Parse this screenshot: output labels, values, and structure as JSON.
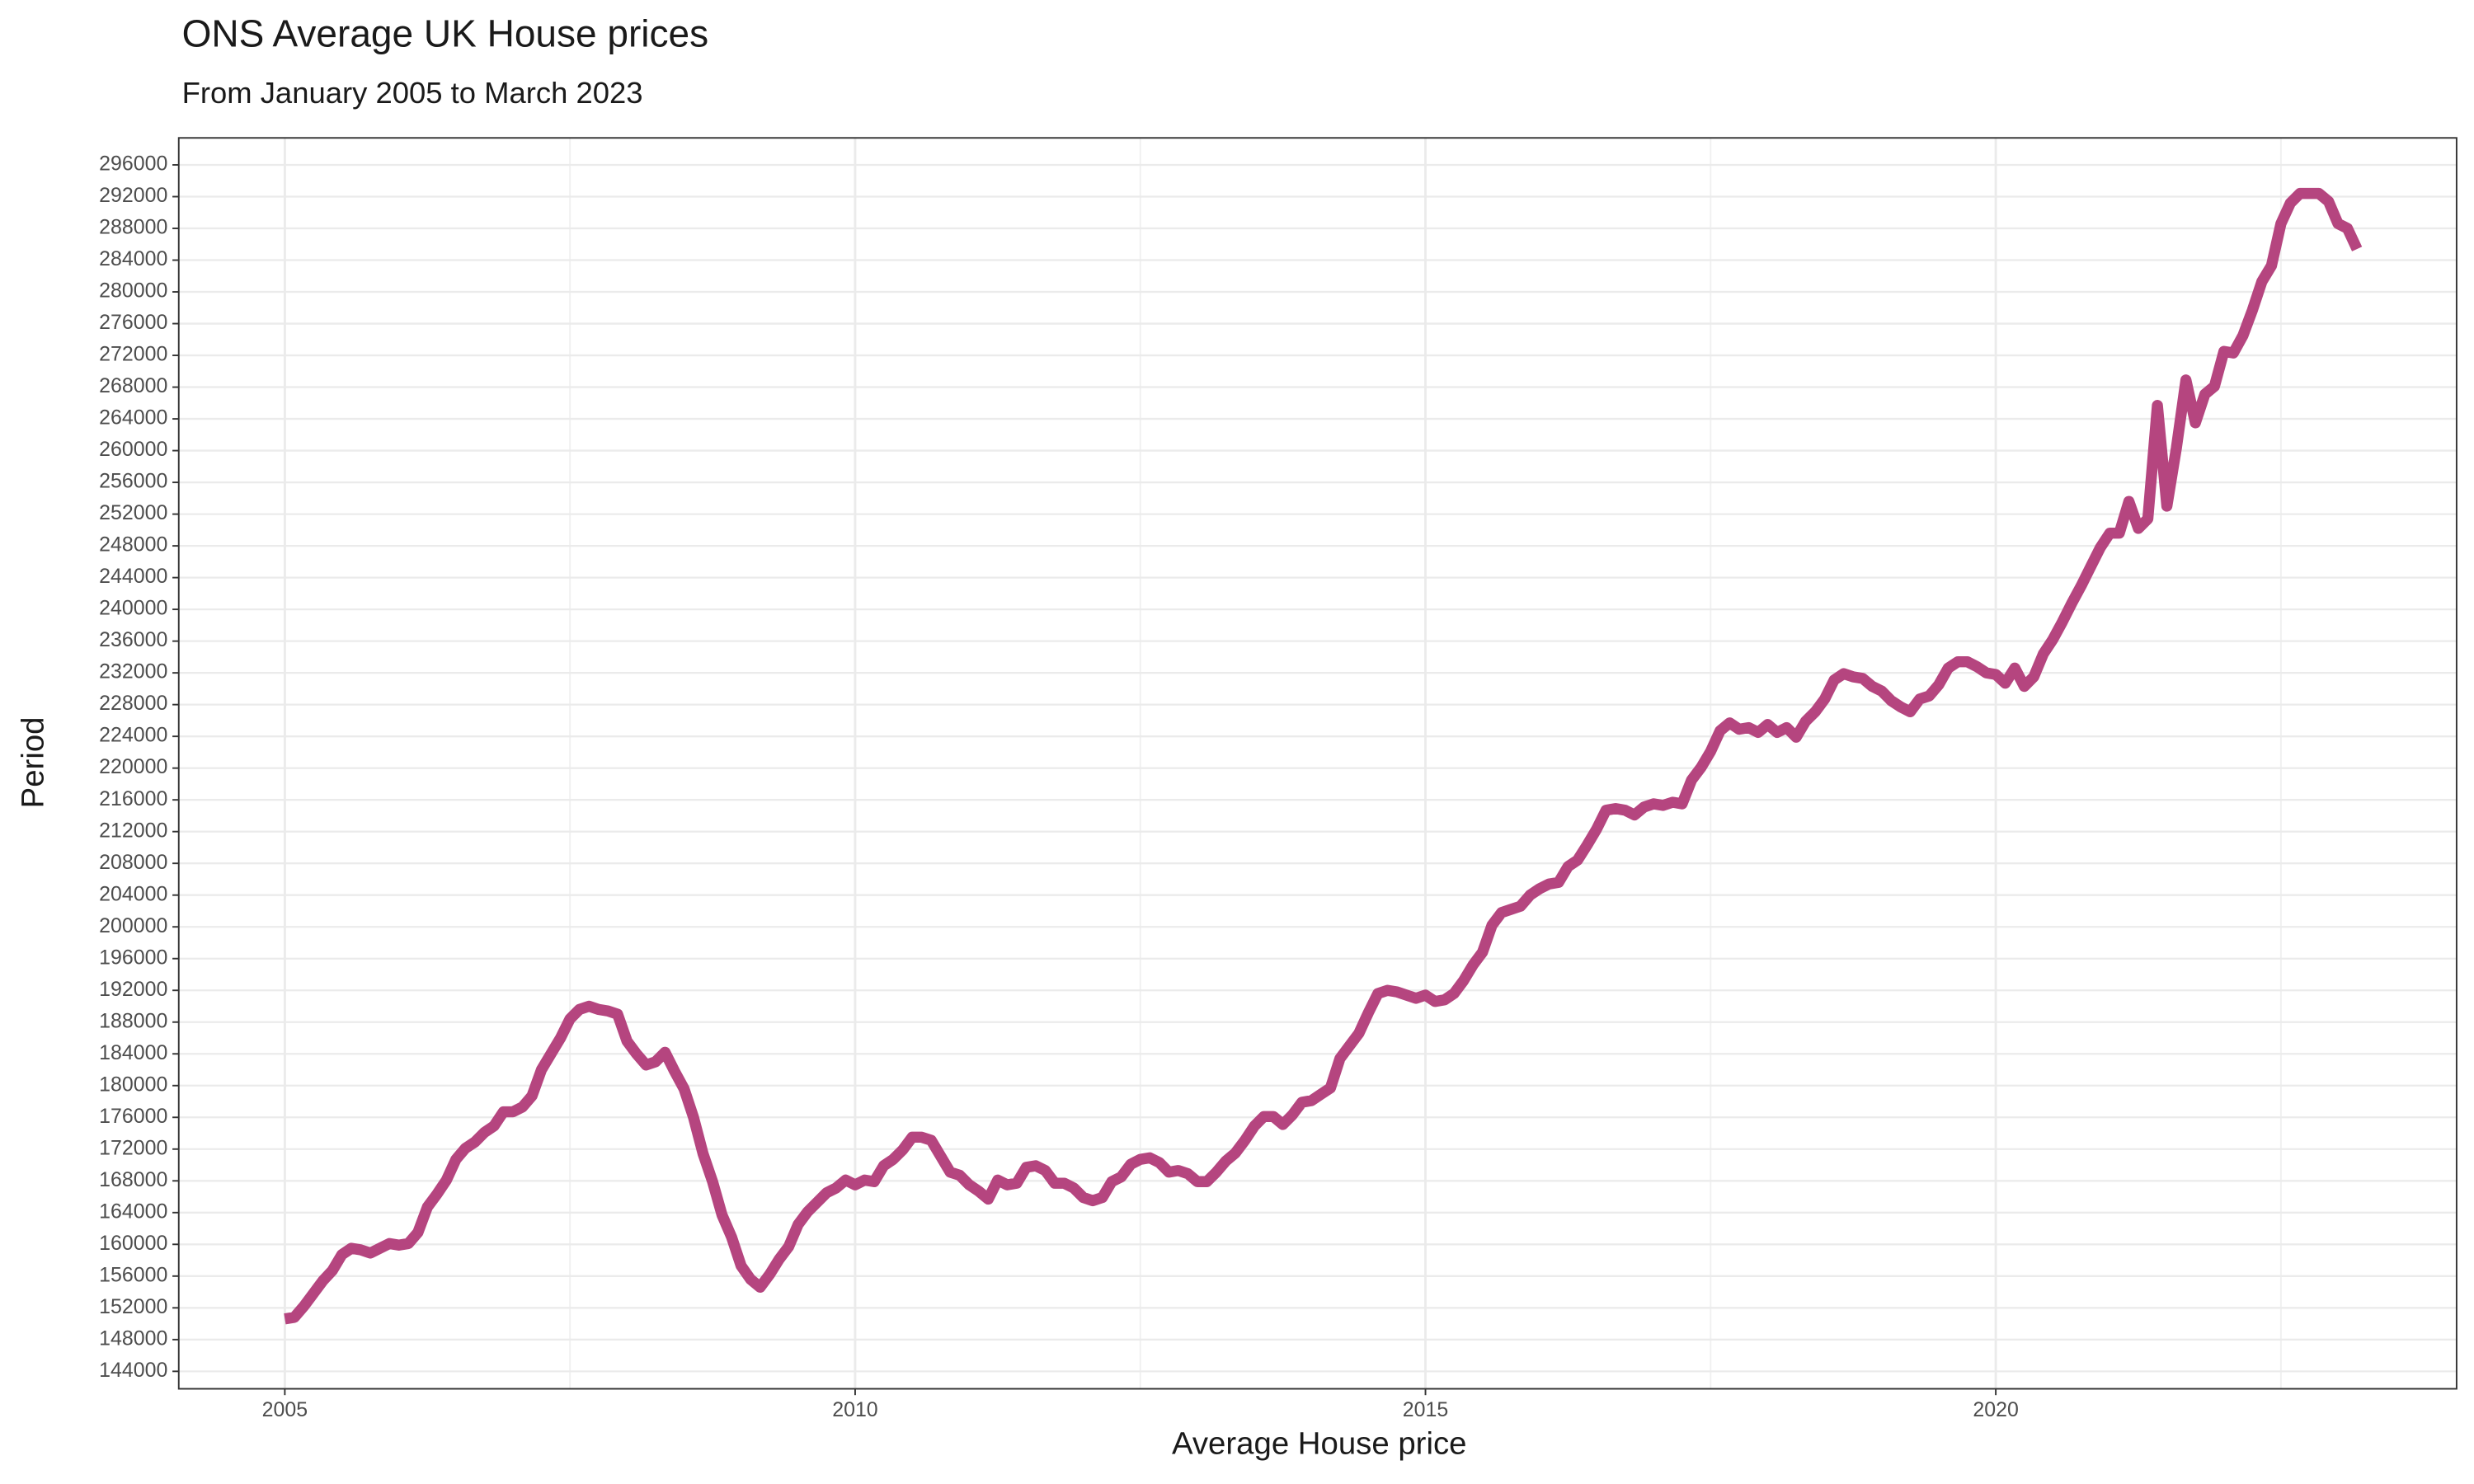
{
  "chart_data": {
    "type": "line",
    "title": "ONS Average UK House prices",
    "subtitle": "From January 2005 to March 2023",
    "x_label": "Average House price",
    "y_label": "Period",
    "grid": true,
    "xlim": [
      2004.07,
      2024.04
    ],
    "xticks": [
      2005,
      2010,
      2015,
      2020
    ],
    "x_minor_grid": [
      2007.5,
      2012.5,
      2017.5,
      2022.5
    ],
    "ylim": [
      141800,
      299400
    ],
    "yticks": [
      144000,
      148000,
      152000,
      156000,
      160000,
      164000,
      168000,
      172000,
      176000,
      180000,
      184000,
      188000,
      192000,
      196000,
      200000,
      204000,
      208000,
      212000,
      216000,
      220000,
      224000,
      228000,
      232000,
      236000,
      240000,
      244000,
      248000,
      252000,
      256000,
      260000,
      264000,
      268000,
      272000,
      276000,
      280000,
      284000,
      288000,
      292000,
      296000
    ],
    "x": [
      2005,
      2005.083,
      2005.167,
      2005.25,
      2005.333,
      2005.417,
      2005.5,
      2005.583,
      2005.667,
      2005.75,
      2005.833,
      2005.917,
      2006,
      2006.083,
      2006.167,
      2006.25,
      2006.333,
      2006.417,
      2006.5,
      2006.583,
      2006.667,
      2006.75,
      2006.833,
      2006.917,
      2007,
      2007.083,
      2007.167,
      2007.25,
      2007.333,
      2007.417,
      2007.5,
      2007.583,
      2007.667,
      2007.75,
      2007.833,
      2007.917,
      2008,
      2008.083,
      2008.167,
      2008.25,
      2008.333,
      2008.417,
      2008.5,
      2008.583,
      2008.667,
      2008.75,
      2008.833,
      2008.917,
      2009,
      2009.083,
      2009.167,
      2009.25,
      2009.333,
      2009.417,
      2009.5,
      2009.583,
      2009.667,
      2009.75,
      2009.833,
      2009.917,
      2010,
      2010.083,
      2010.167,
      2010.25,
      2010.333,
      2010.417,
      2010.5,
      2010.583,
      2010.667,
      2010.75,
      2010.833,
      2010.917,
      2011,
      2011.083,
      2011.167,
      2011.25,
      2011.333,
      2011.417,
      2011.5,
      2011.583,
      2011.667,
      2011.75,
      2011.833,
      2011.917,
      2012,
      2012.083,
      2012.167,
      2012.25,
      2012.333,
      2012.417,
      2012.5,
      2012.583,
      2012.667,
      2012.75,
      2012.833,
      2012.917,
      2013,
      2013.083,
      2013.167,
      2013.25,
      2013.333,
      2013.417,
      2013.5,
      2013.583,
      2013.667,
      2013.75,
      2013.833,
      2013.917,
      2014,
      2014.083,
      2014.167,
      2014.25,
      2014.333,
      2014.417,
      2014.5,
      2014.583,
      2014.667,
      2014.75,
      2014.833,
      2014.917,
      2015,
      2015.083,
      2015.167,
      2015.25,
      2015.333,
      2015.417,
      2015.5,
      2015.583,
      2015.667,
      2015.75,
      2015.833,
      2015.917,
      2016,
      2016.083,
      2016.167,
      2016.25,
      2016.333,
      2016.417,
      2016.5,
      2016.583,
      2016.667,
      2016.75,
      2016.833,
      2016.917,
      2017,
      2017.083,
      2017.167,
      2017.25,
      2017.333,
      2017.417,
      2017.5,
      2017.583,
      2017.667,
      2017.75,
      2017.833,
      2017.917,
      2018,
      2018.083,
      2018.167,
      2018.25,
      2018.333,
      2018.417,
      2018.5,
      2018.583,
      2018.667,
      2018.75,
      2018.833,
      2018.917,
      2019,
      2019.083,
      2019.167,
      2019.25,
      2019.333,
      2019.417,
      2019.5,
      2019.583,
      2019.667,
      2019.75,
      2019.833,
      2019.917,
      2020,
      2020.083,
      2020.167,
      2020.25,
      2020.333,
      2020.417,
      2020.5,
      2020.583,
      2020.667,
      2020.75,
      2020.833,
      2020.917,
      2021,
      2021.083,
      2021.167,
      2021.25,
      2021.333,
      2021.417,
      2021.5,
      2021.583,
      2021.667,
      2021.75,
      2021.833,
      2021.917,
      2022,
      2022.083,
      2022.167,
      2022.25,
      2022.333,
      2022.417,
      2022.5,
      2022.583,
      2022.667,
      2022.75,
      2022.833,
      2022.917,
      2023,
      2023.083,
      2023.167
    ],
    "series": [
      {
        "color": "#b5457f",
        "values": [
          150600,
          150800,
          152200,
          153800,
          155400,
          156700,
          158700,
          159500,
          159300,
          158900,
          159500,
          160100,
          159900,
          160100,
          161500,
          164700,
          166300,
          168100,
          170700,
          172100,
          172900,
          174100,
          174900,
          176700,
          176700,
          177300,
          178700,
          182000,
          184000,
          186000,
          188400,
          189600,
          190000,
          189600,
          189400,
          189000,
          185600,
          184000,
          182600,
          183000,
          184200,
          181800,
          179600,
          176000,
          171400,
          167900,
          163700,
          160900,
          157300,
          155600,
          154600,
          156200,
          158100,
          159700,
          162500,
          164100,
          165300,
          166500,
          167100,
          168100,
          167500,
          168100,
          167900,
          169900,
          170700,
          171900,
          173500,
          173500,
          173100,
          171100,
          169100,
          168700,
          167500,
          166700,
          165700,
          168100,
          167500,
          167700,
          169700,
          169900,
          169300,
          167700,
          167700,
          167100,
          165900,
          165500,
          165900,
          167900,
          168500,
          170100,
          170700,
          170900,
          170300,
          169100,
          169300,
          168900,
          167900,
          167900,
          169100,
          170500,
          171500,
          173100,
          174900,
          176100,
          176100,
          175100,
          176300,
          177900,
          178100,
          178900,
          179700,
          183400,
          185000,
          186600,
          189200,
          191600,
          192000,
          191800,
          191400,
          191000,
          191400,
          190600,
          190800,
          191600,
          193200,
          195200,
          196800,
          200200,
          201800,
          202200,
          202600,
          204000,
          204800,
          205400,
          205600,
          207600,
          208400,
          210300,
          212300,
          214700,
          214900,
          214700,
          214100,
          215100,
          215500,
          215300,
          215700,
          215500,
          218500,
          220100,
          222100,
          224700,
          225700,
          224900,
          225100,
          224500,
          225500,
          224500,
          225100,
          223900,
          225900,
          227100,
          228700,
          231100,
          231900,
          231500,
          231300,
          230300,
          229700,
          228500,
          227700,
          227100,
          228700,
          229100,
          230500,
          232600,
          233400,
          233400,
          232800,
          232000,
          231800,
          230700,
          232600,
          230300,
          231500,
          234400,
          236200,
          238400,
          240800,
          243000,
          245400,
          247800,
          249600,
          249600,
          253600,
          250200,
          251400,
          265700,
          253000,
          260300,
          268900,
          263500,
          267100,
          268100,
          272500,
          272300,
          274500,
          277700,
          281300,
          283300,
          288600,
          291200,
          292400,
          292400,
          292400,
          291400,
          288600,
          288000,
          285400
        ]
      }
    ]
  }
}
